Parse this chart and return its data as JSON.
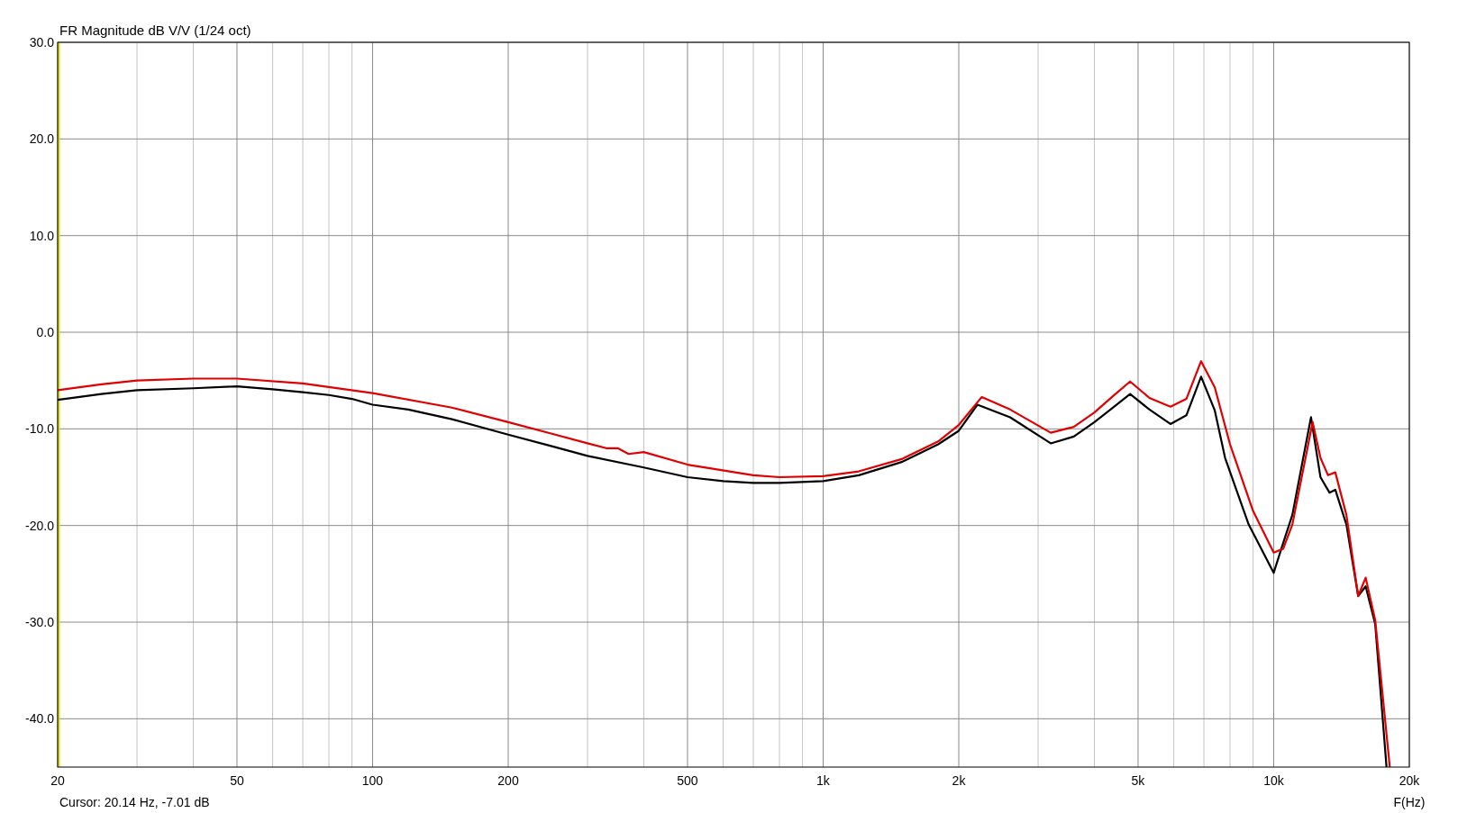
{
  "chart_data": {
    "type": "line",
    "title": "FR Magnitude dB V/V (1/24 oct)",
    "xlabel": "F(Hz)",
    "annotations": [
      "Cursor: 20.14 Hz, -7.01 dB"
    ],
    "log": "x",
    "grid": true,
    "line_style": "solid",
    "xlim": [
      20,
      20000
    ],
    "ylim": [
      -45,
      30
    ],
    "xticks": [
      20,
      {
        "value": 30,
        "label": null
      },
      {
        "value": 40,
        "label": null
      },
      50,
      {
        "value": 60,
        "label": null
      },
      {
        "value": 70,
        "label": null
      },
      {
        "value": 80,
        "label": null
      },
      {
        "value": 90,
        "label": null
      },
      100,
      200,
      {
        "value": 300,
        "label": null
      },
      {
        "value": 400,
        "label": null
      },
      500,
      {
        "value": 600,
        "label": null
      },
      {
        "value": 700,
        "label": null
      },
      {
        "value": 800,
        "label": null
      },
      {
        "value": 900,
        "label": null
      },
      {
        "value": 1000,
        "label": "1k"
      },
      {
        "value": 2000,
        "label": "2k"
      },
      {
        "value": 3000,
        "label": null
      },
      {
        "value": 4000,
        "label": null
      },
      {
        "value": 5000,
        "label": "5k"
      },
      {
        "value": 6000,
        "label": null
      },
      {
        "value": 7000,
        "label": null
      },
      {
        "value": 8000,
        "label": null
      },
      {
        "value": 9000,
        "label": null
      },
      {
        "value": 10000,
        "label": "10k"
      },
      {
        "value": 20000,
        "label": "20k"
      }
    ],
    "yticks": [
      {
        "value": -40,
        "label": "-40.0"
      },
      {
        "value": -30,
        "label": "-30.0"
      },
      {
        "value": -20,
        "label": "-20.0"
      },
      {
        "value": -10,
        "label": "-10.0"
      },
      {
        "value": 0,
        "label": "0.0"
      },
      {
        "value": 10,
        "label": "10.0"
      },
      {
        "value": 20,
        "label": "20.0"
      },
      {
        "value": 30,
        "label": "30.0"
      }
    ],
    "ref_lines": [
      {
        "axis": "x",
        "value": 20.14,
        "color": "#e0e000"
      }
    ],
    "series": [
      {
        "color": "#000000",
        "x": [
          20,
          25,
          30,
          40,
          50,
          60,
          70,
          80,
          90,
          100,
          120,
          150,
          200,
          250,
          300,
          400,
          500,
          600,
          700,
          800,
          1000,
          1200,
          1500,
          1800,
          2000,
          2200,
          2600,
          3200,
          3600,
          4000,
          4400,
          4800,
          5300,
          5900,
          6400,
          6900,
          7400,
          7800,
          8800,
          10000,
          10400,
          11000,
          12100,
          12700,
          13300,
          13700,
          14500,
          15400,
          16000,
          16800,
          17800
        ],
        "values": [
          -7.0,
          -6.4,
          -6.0,
          -5.8,
          -5.6,
          -5.9,
          -6.2,
          -6.5,
          -6.9,
          -7.5,
          -8.0,
          -9.0,
          -10.6,
          -11.8,
          -12.8,
          -14.0,
          -15.0,
          -15.4,
          -15.6,
          -15.6,
          -15.4,
          -14.8,
          -13.4,
          -11.6,
          -10.2,
          -7.5,
          -8.8,
          -11.5,
          -10.8,
          -9.3,
          -7.8,
          -6.4,
          -8.0,
          -9.5,
          -8.6,
          -4.6,
          -8.1,
          -13.0,
          -19.9,
          -24.9,
          -22.4,
          -18.9,
          -8.8,
          -15.0,
          -16.6,
          -16.3,
          -19.9,
          -27.3,
          -26.3,
          -30.2,
          -45
        ]
      },
      {
        "color": "#e00000",
        "x": [
          20,
          25,
          30,
          40,
          50,
          70,
          100,
          150,
          200,
          250,
          300,
          330,
          350,
          370,
          400,
          500,
          700,
          800,
          1000,
          1200,
          1500,
          1800,
          2000,
          2250,
          2600,
          3200,
          3600,
          4000,
          4400,
          4800,
          5300,
          5900,
          6400,
          6900,
          7400,
          8000,
          9000,
          10000,
          10500,
          11000,
          12200,
          12700,
          13200,
          13700,
          14500,
          15400,
          16000,
          16800,
          18100
        ],
        "values": [
          -6.0,
          -5.4,
          -5.0,
          -4.8,
          -4.8,
          -5.3,
          -6.3,
          -7.8,
          -9.3,
          -10.5,
          -11.5,
          -12.0,
          -12.0,
          -12.6,
          -12.4,
          -13.7,
          -14.8,
          -15.0,
          -14.9,
          -14.4,
          -13.1,
          -11.3,
          -9.6,
          -6.7,
          -8.0,
          -10.4,
          -9.8,
          -8.3,
          -6.6,
          -5.1,
          -6.8,
          -7.7,
          -6.9,
          -3.0,
          -5.7,
          -11.6,
          -18.5,
          -22.8,
          -22.4,
          -19.9,
          -9.3,
          -13.0,
          -14.8,
          -14.5,
          -18.9,
          -27.3,
          -25.4,
          -29.8,
          -45
        ]
      }
    ]
  }
}
